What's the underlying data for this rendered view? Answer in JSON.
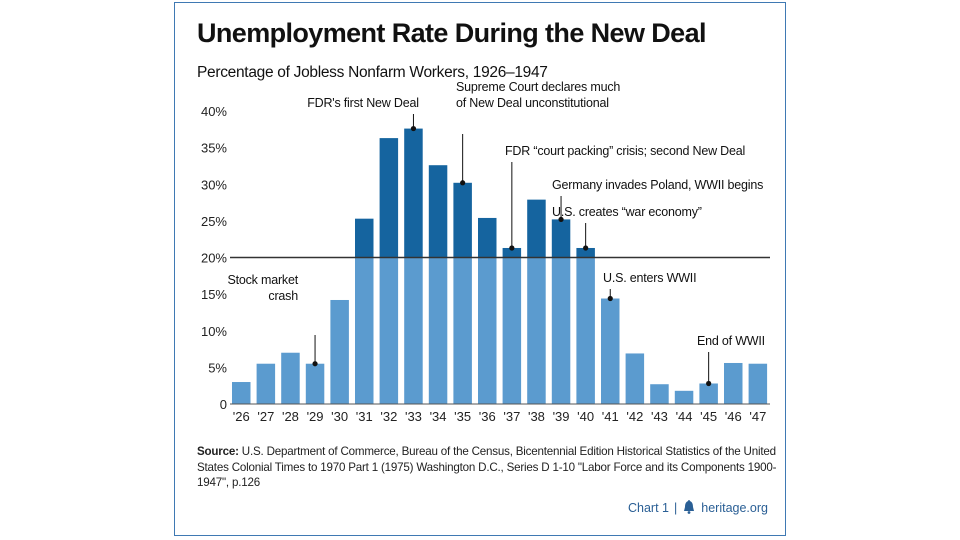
{
  "source": {
    "label": "Source:",
    "text": "U.S. Department of Commerce, Bureau of the Census, Bicentennial Edition Historical Statistics of the United States Colonial Times to 1970 Part 1 (1975) Washington D.C., Series D 1-10 \"Labor Force and its Components 1900-1947\", p.126"
  },
  "footer": {
    "chart_label": "Chart 1",
    "separator": "|",
    "site": "heritage.org",
    "logo_icon": "liberty-bell-icon"
  },
  "colors": {
    "bar_above_threshold": "#15649f",
    "bar_below_threshold": "#5b9bcf",
    "threshold_line": "#333333",
    "frame_border": "#3f79b3",
    "footer_text": "#2a5f95"
  },
  "chart_data": {
    "type": "bar",
    "title": "Unemployment Rate During the New Deal",
    "subtitle": "Percentage of Jobless Nonfarm Workers, 1926–1947",
    "xlabel": "",
    "ylabel": "",
    "categories": [
      "'26",
      "'27",
      "'28",
      "'29",
      "'30",
      "'31",
      "'32",
      "'33",
      "'34",
      "'35",
      "'36",
      "'37",
      "'38",
      "'39",
      "'40",
      "'41",
      "'42",
      "'43",
      "'44",
      "'45",
      "'46",
      "'47"
    ],
    "values": [
      3.0,
      5.5,
      7.0,
      5.5,
      14.2,
      25.3,
      36.3,
      37.6,
      32.6,
      30.2,
      25.4,
      21.3,
      27.9,
      25.2,
      21.3,
      14.4,
      6.9,
      2.7,
      1.8,
      2.8,
      5.6,
      5.5
    ],
    "ylim": [
      0,
      40
    ],
    "yticks": [
      0,
      5,
      10,
      15,
      20,
      25,
      30,
      35,
      40
    ],
    "ytick_labels": [
      "0",
      "5%",
      "10%",
      "15%",
      "20%",
      "25%",
      "30%",
      "35%",
      "40%"
    ],
    "threshold": 20,
    "grid": false,
    "annotations": [
      {
        "lines": [
          "Stock market",
          "crash"
        ],
        "category_index": 3,
        "value": 5.5,
        "anchor": "end"
      },
      {
        "lines": [
          "FDR's first New Deal"
        ],
        "category_index": 7,
        "value": 37.6,
        "anchor": "middle"
      },
      {
        "lines": [
          "Supreme Court declares much",
          "of New Deal unconstitutional"
        ],
        "category_index": 9,
        "value": 30.2,
        "anchor": "start"
      },
      {
        "lines": [
          "FDR “court packing” crisis; second New Deal"
        ],
        "category_index": 11,
        "value": 21.3,
        "anchor": "start"
      },
      {
        "lines": [
          "Germany invades Poland, WWII begins"
        ],
        "category_index": 13,
        "value": 25.2,
        "anchor": "start"
      },
      {
        "lines": [
          "U.S. creates “war economy”"
        ],
        "category_index": 14,
        "value": 21.3,
        "anchor": "start"
      },
      {
        "lines": [
          "U.S. enters WWII"
        ],
        "category_index": 15,
        "value": 14.4,
        "anchor": "start"
      },
      {
        "lines": [
          "End of WWII"
        ],
        "category_index": 19,
        "value": 2.8,
        "anchor": "start"
      }
    ]
  }
}
